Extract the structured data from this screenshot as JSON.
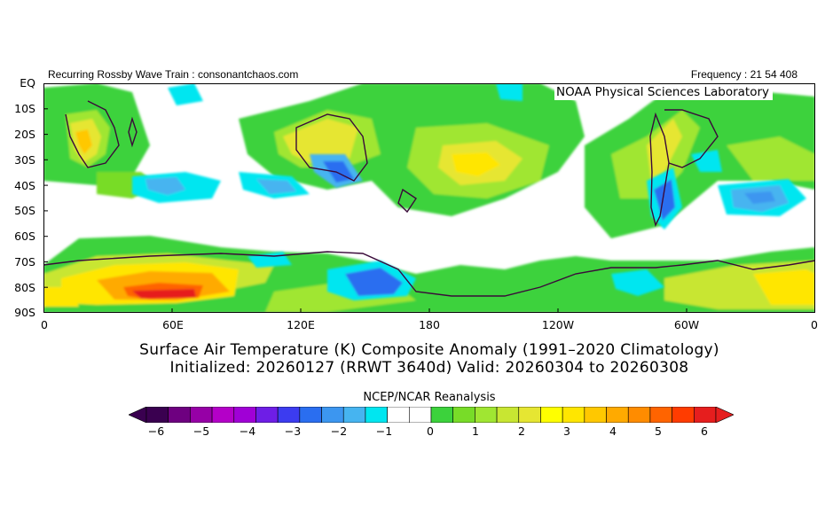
{
  "header": {
    "left_text": "Recurring Rossby Wave Train : consonantchaos.com",
    "right_text": "Frequency : 21 54 408"
  },
  "map": {
    "watermark": "NOAA Physical Sciences Laboratory",
    "y_ticks": [
      "EQ",
      "10S",
      "20S",
      "30S",
      "40S",
      "50S",
      "60S",
      "70S",
      "80S",
      "90S"
    ],
    "x_ticks": [
      "0",
      "60E",
      "120E",
      "180",
      "120W",
      "60W",
      "0"
    ],
    "lat_range": [
      0,
      -90
    ],
    "lon_range": [
      0,
      360
    ],
    "field": "Surface Air Temperature Composite Anomaly",
    "units": "K"
  },
  "titles": {
    "line1": "Surface Air Temperature (K) Composite Anomaly (1991–2020 Climatology)",
    "line2": "Initialized: 20260127 (RRWT 3640d) Valid: 20260304 to 20260308"
  },
  "source": "NCEP/NCAR Reanalysis",
  "colorbar": {
    "labels": [
      "−6",
      "−5",
      "−4",
      "−3",
      "−2",
      "−1",
      "0",
      "1",
      "2",
      "3",
      "4",
      "5",
      "6"
    ],
    "colors": [
      "#3a0050",
      "#6e0080",
      "#9600a6",
      "#b400c8",
      "#a000d6",
      "#6e1ee6",
      "#3c3cf0",
      "#2a6ef0",
      "#3c96f0",
      "#46b4f0",
      "#00e6f0",
      "#ffffff",
      "#ffffff",
      "#3cd23c",
      "#78dc28",
      "#a0e632",
      "#c8e632",
      "#e6e632",
      "#ffff00",
      "#ffe600",
      "#ffc800",
      "#ffaa00",
      "#ff8c00",
      "#ff6400",
      "#ff3c00",
      "#e61e1e"
    ]
  }
}
